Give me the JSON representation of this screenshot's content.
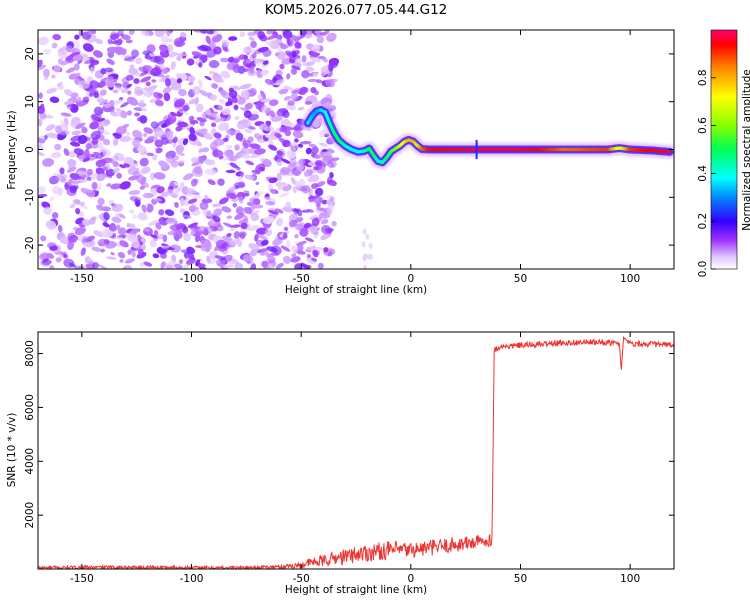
{
  "chart_data": [
    {
      "type": "heatmap",
      "title": "KOM5.2026.077.05.44.G12",
      "xlabel": "Height of straight line (km)",
      "ylabel": "Frequency (Hz)",
      "xlim": [
        -170,
        120
      ],
      "ylim": [
        -25,
        25
      ],
      "x_ticks": [
        -150,
        -100,
        -50,
        0,
        50,
        100
      ],
      "y_ticks": [
        20,
        10,
        0,
        -10,
        -20
      ],
      "grid": false,
      "colorbar": {
        "label": "Normalized spectral amplitude",
        "range": [
          0,
          1
        ],
        "ticks": [
          0.0,
          0.2,
          0.4,
          0.6,
          0.8
        ],
        "colormap": [
          "#ffffff",
          "#d9b3ff",
          "#9a33ff",
          "#3300ff",
          "#0088ff",
          "#00ffff",
          "#00ff66",
          "#66ff00",
          "#ffff00",
          "#ff9900",
          "#ff0000",
          "#ff0077"
        ]
      },
      "trace": {
        "x": [
          -47,
          -45,
          -43,
          -41,
          -39,
          -37,
          -35,
          -33,
          -30,
          -27,
          -24,
          -21,
          -19,
          -17,
          -15,
          -13,
          -11,
          -9,
          -7,
          -5,
          -3,
          -1,
          1,
          3,
          5,
          8,
          15,
          30,
          50,
          70,
          90,
          95,
          100,
          110,
          118
        ],
        "y": [
          5.5,
          7.0,
          8.0,
          8.3,
          7.8,
          5.5,
          3.5,
          2.0,
          0.8,
          0.0,
          -0.5,
          -0.3,
          0.2,
          -1.2,
          -2.4,
          -2.7,
          -1.7,
          -0.4,
          0.2,
          0.8,
          1.6,
          2.0,
          1.7,
          0.8,
          0.1,
          0.0,
          0.0,
          0.0,
          0.0,
          0.0,
          0.0,
          0.3,
          0.0,
          -0.2,
          -0.5
        ],
        "amplitude": [
          0.45,
          0.4,
          0.38,
          0.42,
          0.45,
          0.5,
          0.55,
          0.55,
          0.5,
          0.45,
          0.45,
          0.5,
          0.55,
          0.55,
          0.5,
          0.5,
          0.55,
          0.6,
          0.65,
          0.7,
          0.75,
          0.8,
          0.8,
          0.75,
          0.85,
          0.9,
          0.92,
          0.95,
          0.95,
          0.85,
          0.88,
          0.7,
          0.88,
          0.92,
          0.95
        ]
      },
      "noise_region": {
        "x_range": [
          -170,
          -45
        ],
        "amplitude_range": [
          0.05,
          0.22
        ]
      }
    },
    {
      "type": "line",
      "xlabel": "Height of straight line (km)",
      "ylabel": "SNR (10 * v/v)",
      "xlim": [
        -170,
        120
      ],
      "ylim": [
        0,
        8800
      ],
      "x_ticks": [
        -150,
        -100,
        -50,
        0,
        50,
        100
      ],
      "y_ticks": [
        2000,
        4000,
        6000,
        8000
      ],
      "grid": false,
      "line_color": "#ee3333",
      "series": [
        {
          "x": [
            -170,
            -150,
            -130,
            -110,
            -90,
            -70,
            -60,
            -50,
            -45,
            -40,
            -35,
            -30,
            -25,
            -20,
            -15,
            -10,
            -5,
            0,
            5,
            10,
            15,
            20,
            25,
            30,
            35,
            37,
            38,
            40,
            50,
            60,
            70,
            80,
            90,
            95,
            96,
            97,
            100,
            110,
            120
          ],
          "y": [
            50,
            60,
            70,
            60,
            50,
            60,
            80,
            150,
            250,
            300,
            400,
            450,
            550,
            600,
            650,
            700,
            700,
            700,
            750,
            800,
            850,
            900,
            950,
            1000,
            1050,
            1100,
            8100,
            8250,
            8300,
            8350,
            8400,
            8420,
            8400,
            8380,
            7400,
            8600,
            8380,
            8350,
            8300
          ],
          "noise_amplitude": [
            60,
            60,
            60,
            60,
            60,
            60,
            80,
            120,
            180,
            220,
            260,
            300,
            320,
            340,
            340,
            340,
            320,
            300,
            300,
            300,
            300,
            300,
            280,
            260,
            240,
            220,
            120,
            110,
            110,
            110,
            110,
            110,
            110,
            110,
            0,
            0,
            110,
            110,
            110
          ]
        }
      ]
    }
  ]
}
